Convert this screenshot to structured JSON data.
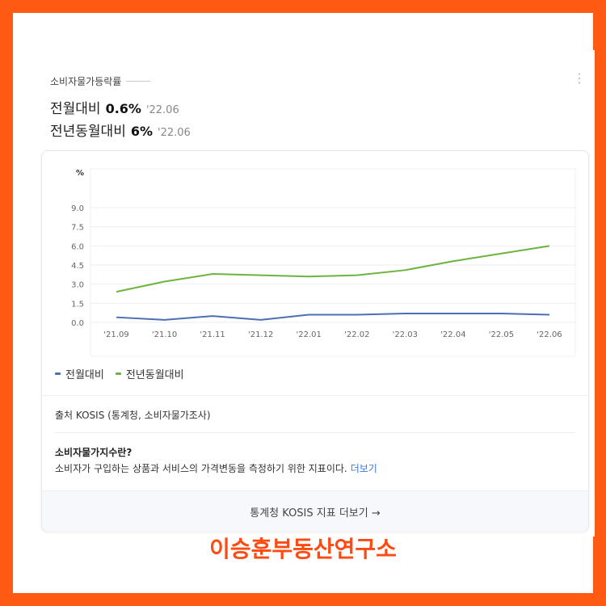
{
  "header": {
    "indicator_label": "소비자물가등락률",
    "mom_label": "전월대비",
    "mom_value": "0.6%",
    "mom_date": "'22.06",
    "yoy_label": "전년동월대비",
    "yoy_value": "6%",
    "yoy_date": "'22.06"
  },
  "chart_data": {
    "type": "line",
    "title": "",
    "ylabel": "%",
    "xlabel": "",
    "categories": [
      "'21.09",
      "'21.10",
      "'21.11",
      "'21.12",
      "'22.01",
      "'22.02",
      "'22.03",
      "'22.04",
      "'22.05",
      "'22.06"
    ],
    "yticks": [
      "9.0",
      "7.5",
      "6.0",
      "4.5",
      "3.0",
      "1.5",
      "0.0"
    ],
    "ylim": [
      0,
      9
    ],
    "grid": true,
    "legend_position": "bottom-left",
    "series": [
      {
        "name": "전월대비",
        "color": "#4a6fb3",
        "values": [
          0.4,
          0.2,
          0.5,
          0.2,
          0.6,
          0.6,
          0.7,
          0.7,
          0.7,
          0.6
        ]
      },
      {
        "name": "전년동월대비",
        "color": "#6cb33f",
        "values": [
          2.4,
          3.2,
          3.8,
          3.7,
          3.6,
          3.7,
          4.1,
          4.8,
          5.4,
          6.0
        ]
      }
    ]
  },
  "source_text": "출처 KOSIS (통계청, 소비자물가조사)",
  "definition": {
    "title": "소비자물가지수란?",
    "text": "소비자가 구입하는 상품과 서비스의 가격변동을 측정하기 위한 지표이다.",
    "more": "더보기"
  },
  "footer_link": "통계청 KOSIS 지표 더보기 →",
  "brand": "이승훈부동산연구소"
}
